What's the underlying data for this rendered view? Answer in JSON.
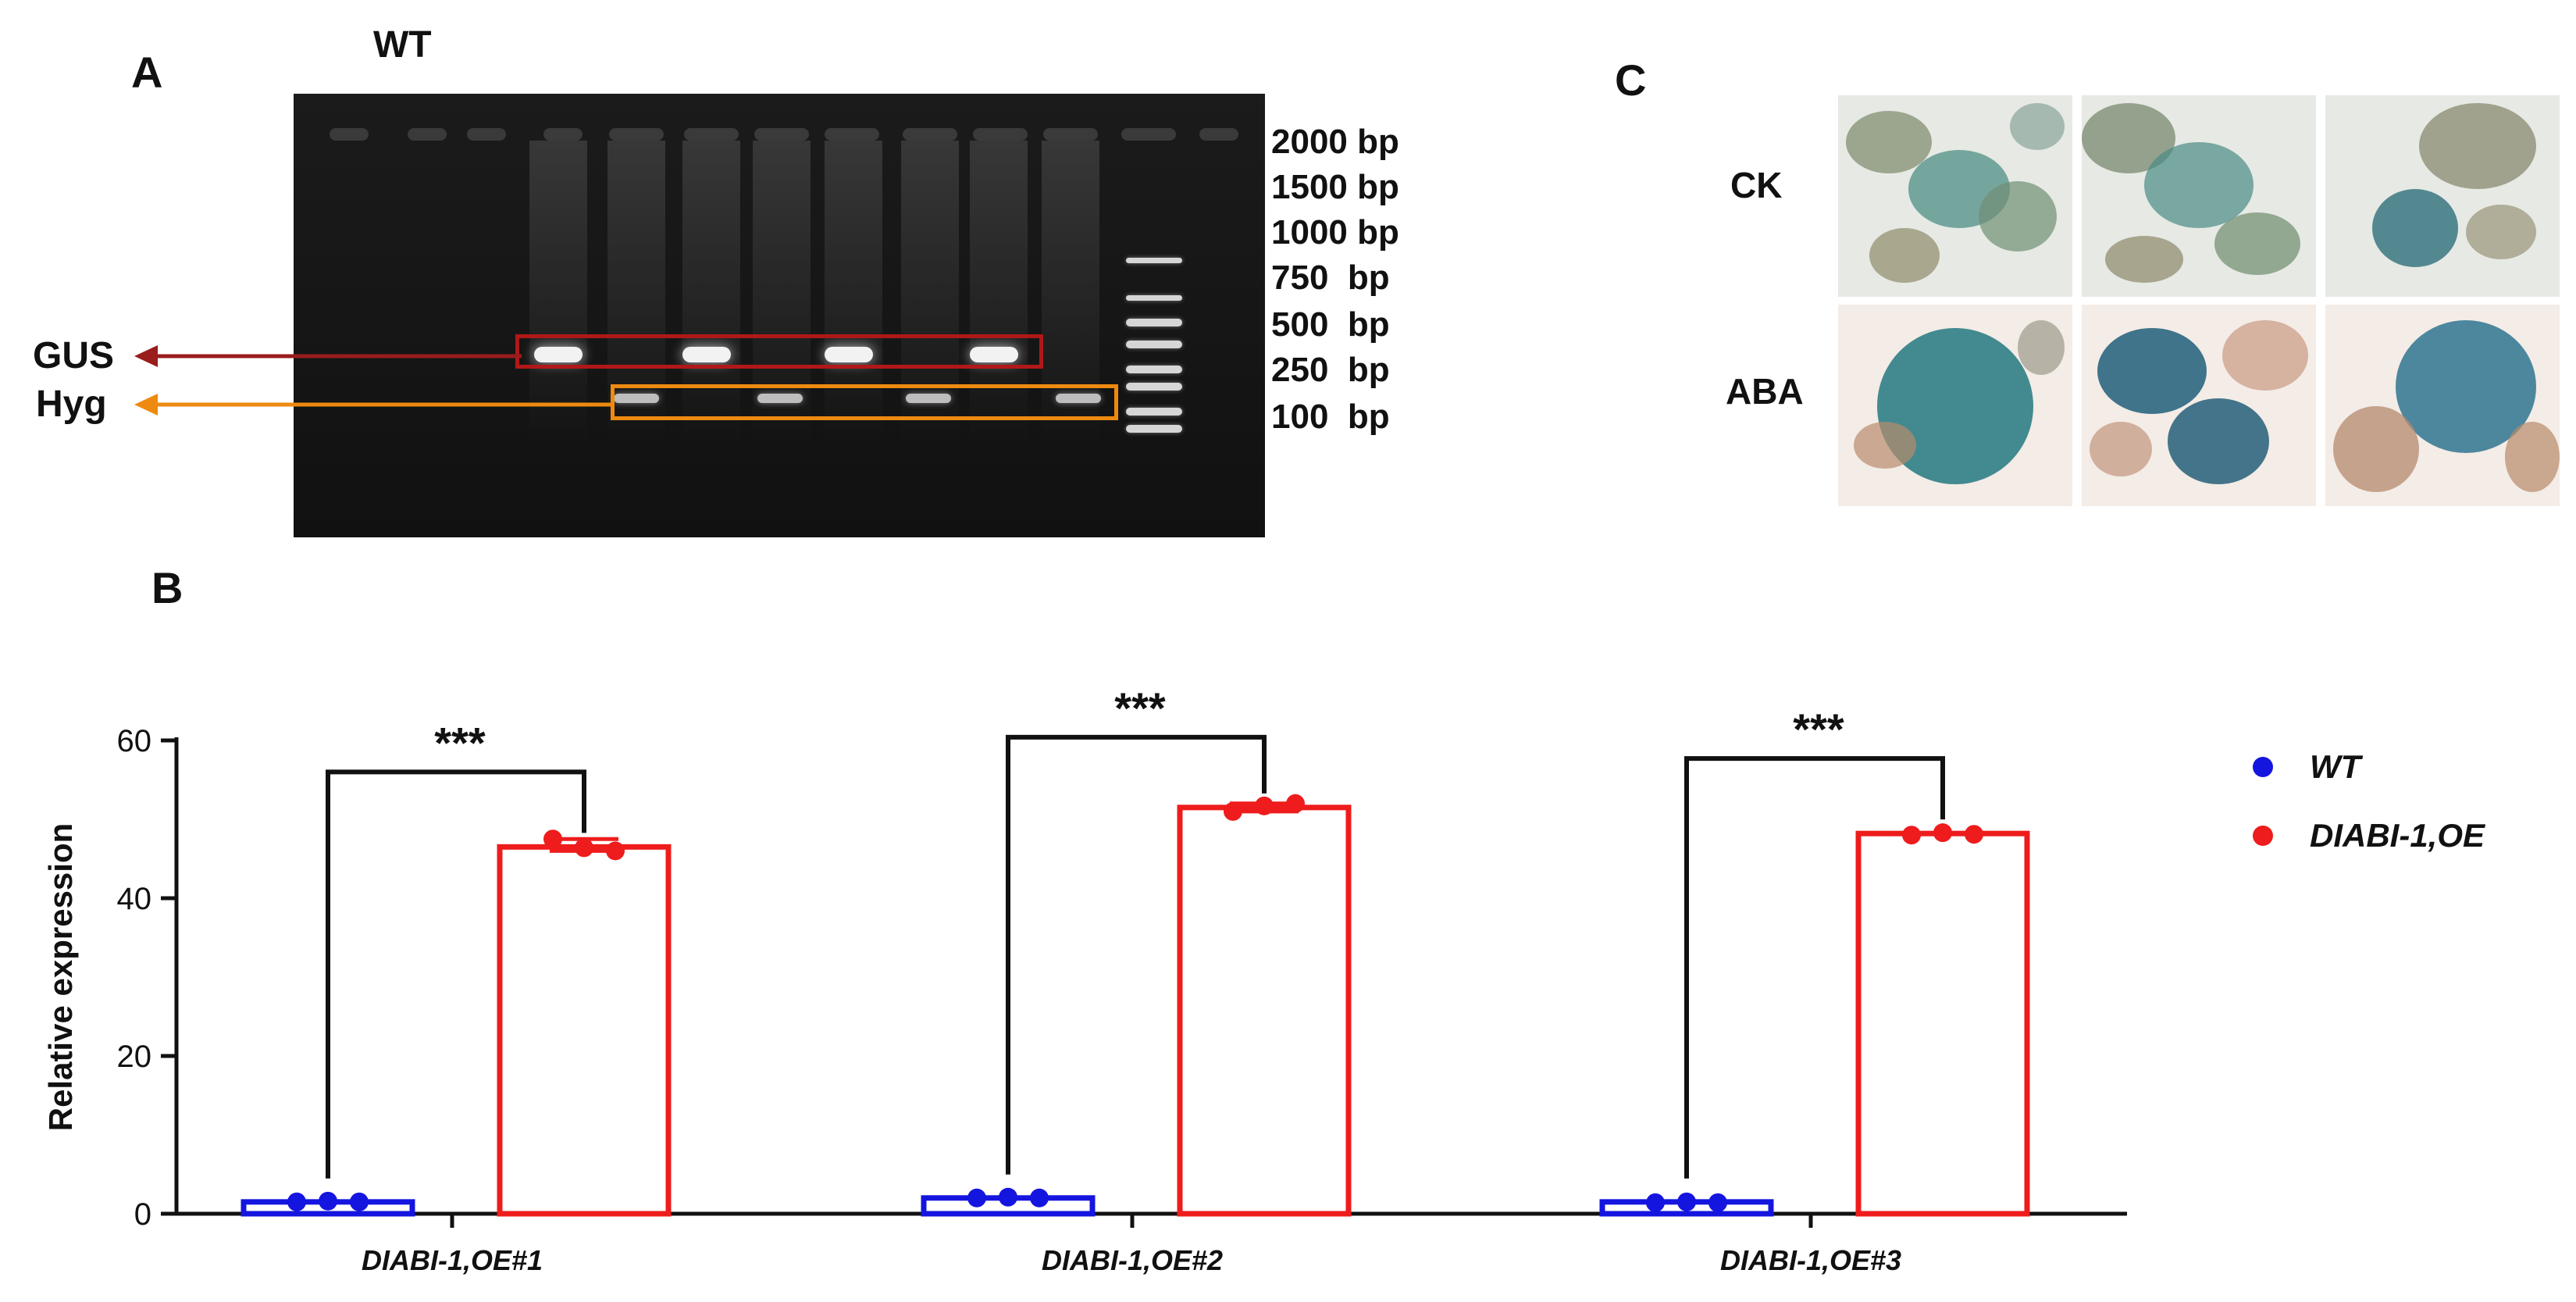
{
  "panels": {
    "a": "A",
    "b": "B",
    "c": "C"
  },
  "gel": {
    "wt_label": "WT",
    "gus_label": "GUS",
    "hyg_label": "Hyg",
    "ladder": [
      "2000 bp",
      "1500 bp",
      "1000 bp",
      "750  bp",
      "500  bp",
      "250  bp",
      "100  bp"
    ],
    "colors": {
      "gus_box": "#b01818",
      "hyg_box": "#ee8a10",
      "wt_arrow": "#b5651d"
    }
  },
  "microscopy": {
    "row_labels": [
      "CK",
      "ABA"
    ]
  },
  "chart_data": {
    "type": "bar",
    "categories": [
      "DIABI-1,OE#1",
      "DIABI-1,OE#2",
      "DIABI-1,OE#3"
    ],
    "series": [
      {
        "name": "WT",
        "color": "#1515e0",
        "values": [
          1.5,
          2.0,
          1.5
        ],
        "points": [
          [
            1.5,
            1.6,
            1.5
          ],
          [
            2.0,
            2.1,
            2.0
          ],
          [
            1.4,
            1.5,
            1.4
          ]
        ]
      },
      {
        "name": "DIABI-1,OE",
        "color": "#ee1c1c",
        "values": [
          46.5,
          51.5,
          48.2
        ],
        "points": [
          [
            47.5,
            46.4,
            46.0
          ],
          [
            51.0,
            51.7,
            52.0
          ],
          [
            48.0,
            48.3,
            48.1
          ]
        ]
      }
    ],
    "significance": [
      "***",
      "***",
      "***"
    ],
    "ylabel": "Relative expression",
    "xlabel": "",
    "ylim": [
      0,
      60
    ],
    "yticks": [
      0,
      20,
      40,
      60
    ],
    "legend": "right"
  }
}
